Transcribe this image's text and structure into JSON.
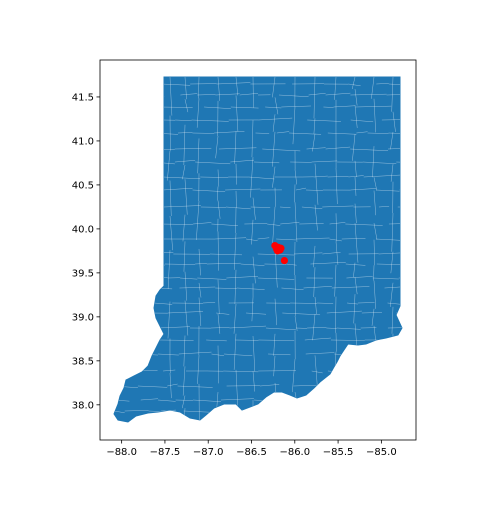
{
  "chart_data": {
    "type": "scatter",
    "title": "",
    "xlabel": "",
    "ylabel": "",
    "xlim": [
      -88.25,
      -84.6
    ],
    "ylim": [
      37.6,
      41.92
    ],
    "grid": false,
    "xticks": [
      -88.0,
      -87.5,
      -87.0,
      -86.5,
      -86.0,
      -85.5,
      -85.0
    ],
    "xtick_labels": [
      "−88.0",
      "−87.5",
      "−87.0",
      "−86.5",
      "−86.0",
      "−85.5",
      "−85.0"
    ],
    "yticks": [
      38.0,
      38.5,
      39.0,
      39.5,
      40.0,
      40.5,
      41.0,
      41.5
    ],
    "ytick_labels": [
      "38.0",
      "38.5",
      "39.0",
      "39.5",
      "40.0",
      "40.5",
      "41.0",
      "41.5"
    ],
    "base_layer": {
      "type": "polygons",
      "region": "Indiana",
      "fill_color": "#1f77b4",
      "edge_color": "#ffffff"
    },
    "points": {
      "color": "#ff0000",
      "x": [
        -86.23,
        -86.21,
        -86.19,
        -86.17,
        -86.16,
        -86.2,
        -86.12
      ],
      "y": [
        39.81,
        39.77,
        39.79,
        39.76,
        39.78,
        39.75,
        39.64
      ]
    },
    "colors": {
      "background": "#ffffff",
      "fill": "#1f77b4",
      "edge": "#ffffff",
      "points": "#ff0000"
    }
  }
}
